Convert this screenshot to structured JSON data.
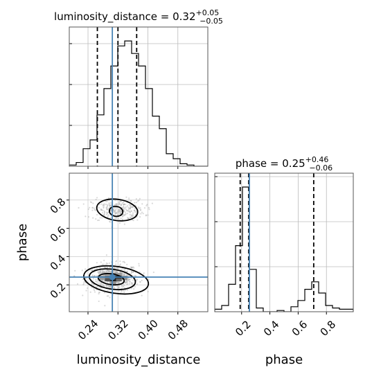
{
  "chart_data": {
    "type": "corner",
    "parameters": [
      "luminosity_distance",
      "phase"
    ],
    "truths": {
      "luminosity_distance": 0.305,
      "phase": 0.255
    },
    "titles": {
      "luminosity_distance": {
        "prefix": "luminosity_distance = ",
        "value": "0.32",
        "plus": "+0.05",
        "minus": "−0.05"
      },
      "phase": {
        "prefix": "phase = ",
        "value": "0.25",
        "plus": "+0.46",
        "minus": "−0.06"
      }
    },
    "axes": {
      "luminosity_distance": {
        "range": [
          0.19,
          0.56
        ],
        "ticks": [
          0.24,
          0.32,
          0.4,
          0.48
        ],
        "tick_labels": [
          "0.24",
          "0.32",
          "0.40",
          "0.48"
        ],
        "label": "luminosity_distance"
      },
      "phase": {
        "range": [
          0.01,
          0.99
        ],
        "ticks": [
          0.2,
          0.4,
          0.6,
          0.8
        ],
        "tick_labels": [
          "0.2",
          "0.4",
          "0.6",
          "0.8"
        ],
        "label": "phase"
      }
    },
    "quantiles": {
      "luminosity_distance": [
        0.265,
        0.32,
        0.37
      ],
      "phase": [
        0.19,
        0.25,
        0.71
      ]
    },
    "hist_luminosity_distance": {
      "bin_edges": [
        0.19,
        0.2085,
        0.227,
        0.2455,
        0.264,
        0.2825,
        0.301,
        0.3195,
        0.338,
        0.3565,
        0.375,
        0.3935,
        0.412,
        0.4305,
        0.449,
        0.4675,
        0.486,
        0.5045,
        0.523,
        0.5415,
        0.56
      ],
      "counts": [
        0.01,
        0.03,
        0.14,
        0.21,
        0.41,
        0.62,
        0.8,
        0.96,
        1.0,
        0.9,
        0.8,
        0.62,
        0.4,
        0.3,
        0.1,
        0.06,
        0.02,
        0.01,
        0.0,
        0.0
      ]
    },
    "hist_phase": {
      "bin_edges": [
        0.01,
        0.059,
        0.108,
        0.157,
        0.206,
        0.255,
        0.304,
        0.353,
        0.402,
        0.451,
        0.5,
        0.549,
        0.598,
        0.647,
        0.696,
        0.745,
        0.794,
        0.843,
        0.892,
        0.941,
        0.99
      ],
      "counts": [
        0.02,
        0.05,
        0.22,
        0.53,
        1.0,
        0.34,
        0.03,
        0.0,
        0.0,
        0.01,
        0.0,
        0.04,
        0.09,
        0.18,
        0.24,
        0.15,
        0.05,
        0.03,
        0.02,
        0.02
      ]
    },
    "density_cells": [
      {
        "x": 0.285,
        "y": 0.245,
        "w": 0.015,
        "h": 0.02,
        "level": 0.55
      },
      {
        "x": 0.3,
        "y": 0.245,
        "w": 0.015,
        "h": 0.02,
        "level": 0.85
      },
      {
        "x": 0.315,
        "y": 0.245,
        "w": 0.015,
        "h": 0.02,
        "level": 0.9
      },
      {
        "x": 0.3,
        "y": 0.225,
        "w": 0.015,
        "h": 0.02,
        "level": 0.95
      },
      {
        "x": 0.285,
        "y": 0.225,
        "w": 0.015,
        "h": 0.02,
        "level": 0.7
      },
      {
        "x": 0.315,
        "y": 0.225,
        "w": 0.015,
        "h": 0.02,
        "level": 0.6
      },
      {
        "x": 0.33,
        "y": 0.235,
        "w": 0.015,
        "h": 0.03,
        "level": 0.4
      },
      {
        "x": 0.27,
        "y": 0.235,
        "w": 0.015,
        "h": 0.03,
        "level": 0.35
      },
      {
        "x": 0.3,
        "y": 0.265,
        "w": 0.015,
        "h": 0.02,
        "level": 0.45
      },
      {
        "x": 0.285,
        "y": 0.265,
        "w": 0.015,
        "h": 0.02,
        "level": 0.3
      },
      {
        "x": 0.315,
        "y": 0.265,
        "w": 0.015,
        "h": 0.02,
        "level": 0.35
      },
      {
        "x": 0.3,
        "y": 0.205,
        "w": 0.015,
        "h": 0.02,
        "level": 0.4
      }
    ],
    "contours": [
      {
        "cx": 0.315,
        "cy": 0.72,
        "rx": 0.018,
        "ry": 0.035,
        "level": "inner"
      },
      {
        "cx": 0.318,
        "cy": 0.73,
        "rx": 0.055,
        "ry": 0.075,
        "level": "outer"
      },
      {
        "cx": 0.302,
        "cy": 0.24,
        "rx": 0.035,
        "ry": 0.038,
        "level": "inner"
      },
      {
        "cx": 0.305,
        "cy": 0.24,
        "rx": 0.062,
        "ry": 0.07,
        "level": "middle"
      },
      {
        "cx": 0.315,
        "cy": 0.235,
        "rx": 0.087,
        "ry": 0.095,
        "level": "outer"
      }
    ],
    "scatter_clusters": [
      {
        "cx": 0.305,
        "cy": 0.25,
        "sx": 0.05,
        "sy": 0.07,
        "n": 700
      },
      {
        "cx": 0.32,
        "cy": 0.73,
        "sx": 0.05,
        "sy": 0.055,
        "n": 320
      }
    ]
  }
}
